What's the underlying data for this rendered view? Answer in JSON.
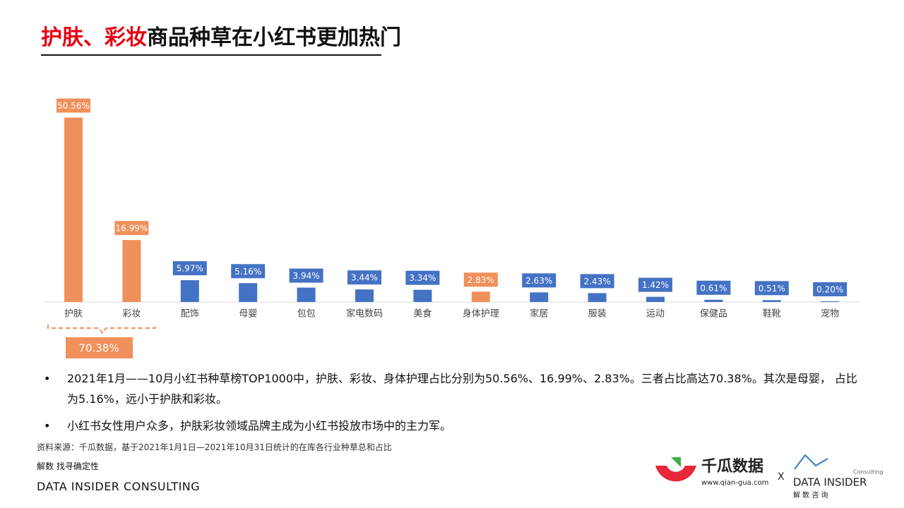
{
  "header": {
    "title_highlight": "护肤、彩妆",
    "title_rest": "商品种草在小红书更加热门"
  },
  "chart_data": {
    "type": "bar",
    "categories": [
      "护肤",
      "彩妆",
      "配饰",
      "母婴",
      "包包",
      "家电数码",
      "美食",
      "身体护理",
      "家居",
      "服装",
      "运动",
      "保健品",
      "鞋靴",
      "宠物"
    ],
    "values": [
      50.56,
      16.99,
      5.97,
      5.16,
      3.94,
      3.44,
      3.34,
      2.83,
      2.63,
      2.43,
      1.42,
      0.61,
      0.51,
      0.2
    ],
    "value_labels": [
      "50.56%",
      "16.99%",
      "5.97%",
      "5.16%",
      "3.94%",
      "3.44%",
      "3.34%",
      "2.83%",
      "2.63%",
      "2.43%",
      "1.42%",
      "0.61%",
      "0.51%",
      "0.20%"
    ],
    "colors": [
      "#f0905a",
      "#f0905a",
      "#4472c4",
      "#4472c4",
      "#4472c4",
      "#4472c4",
      "#4472c4",
      "#f0905a",
      "#4472c4",
      "#4472c4",
      "#4472c4",
      "#4472c4",
      "#4472c4",
      "#4472c4"
    ],
    "annotation": "70.38%"
  },
  "notes": [
    "2021年1月——10月小红书种草榜TOP1000中，护肤、彩妆、身体护理占比分别为50.56%、16.99%、2.83%。三者占比高达70.38%。其次是母婴， 占比为5.16%，远小于护肤和彩妆。",
    "小红书女性用户众多，护肤彩妆领域品牌主成为小红书投放市场中的主力军。"
  ],
  "source": "资料来源：千瓜数据，基于2021年1月1日—2021年10月31日统计的在库各行业种草总和占比",
  "footer": {
    "slogan": "解数 找寻确定性",
    "company": "DATA INSIDER CONSULTING"
  },
  "logos": {
    "qiangua": "千瓜数据",
    "qiangua_url": "www.qian-gua.com",
    "cross": "X",
    "di_small": "Consulting",
    "di_name": "DATA INSIDER",
    "di_cn": "解 数 咨 询"
  }
}
